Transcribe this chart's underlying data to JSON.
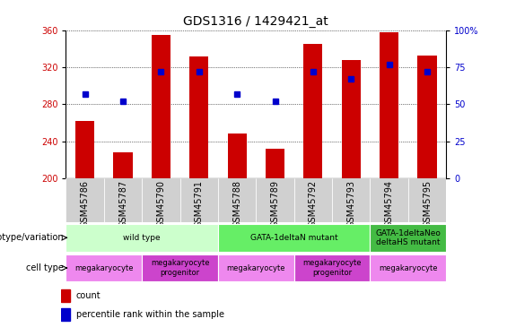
{
  "title": "GDS1316 / 1429421_at",
  "samples": [
    "GSM45786",
    "GSM45787",
    "GSM45790",
    "GSM45791",
    "GSM45788",
    "GSM45789",
    "GSM45792",
    "GSM45793",
    "GSM45794",
    "GSM45795"
  ],
  "counts": [
    262,
    228,
    355,
    332,
    248,
    232,
    345,
    328,
    358,
    333
  ],
  "percentiles": [
    57,
    52,
    72,
    72,
    57,
    52,
    72,
    67,
    77,
    72
  ],
  "ylim_left": [
    200,
    360
  ],
  "ylim_right": [
    0,
    100
  ],
  "yticks_left": [
    200,
    240,
    280,
    320,
    360
  ],
  "yticks_right": [
    0,
    25,
    50,
    75,
    100
  ],
  "bar_color": "#cc0000",
  "square_color": "#0000cc",
  "genotype_groups": [
    {
      "label": "wild type",
      "start": 0,
      "end": 4,
      "color": "#ccffcc"
    },
    {
      "label": "GATA-1deltaN mutant",
      "start": 4,
      "end": 8,
      "color": "#66ee66"
    },
    {
      "label": "GATA-1deltaNeo\ndeltaHS mutant",
      "start": 8,
      "end": 10,
      "color": "#44bb44"
    }
  ],
  "cell_type_groups": [
    {
      "label": "megakaryocyte",
      "start": 0,
      "end": 2,
      "color": "#ee88ee"
    },
    {
      "label": "megakaryocyte\nprogenitor",
      "start": 2,
      "end": 4,
      "color": "#cc44cc"
    },
    {
      "label": "megakaryocyte",
      "start": 4,
      "end": 6,
      "color": "#ee88ee"
    },
    {
      "label": "megakaryocyte\nprogenitor",
      "start": 6,
      "end": 8,
      "color": "#cc44cc"
    },
    {
      "label": "megakaryocyte",
      "start": 8,
      "end": 10,
      "color": "#ee88ee"
    }
  ],
  "legend_count_label": "count",
  "legend_percentile_label": "percentile rank within the sample",
  "genotype_label": "genotype/variation",
  "cell_type_label": "cell type",
  "title_fontsize": 10,
  "tick_fontsize": 7,
  "label_fontsize": 7,
  "annot_fontsize": 6.5,
  "bar_color_hex": "#cc0000",
  "square_color_hex": "#0000cc",
  "xtick_bg": "#d0d0d0"
}
